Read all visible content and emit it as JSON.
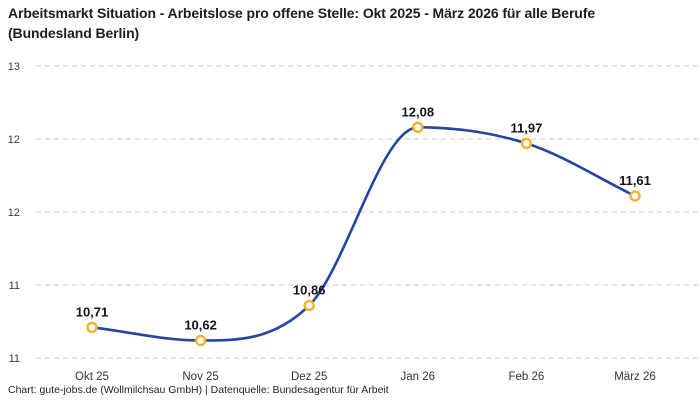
{
  "header": {
    "title": "Arbeitsmarkt Situation - Arbeitslose pro offene Stelle: Okt 2025 - März 2026 für alle Berufe (Bundesland Berlin)"
  },
  "chart_data": {
    "type": "line",
    "title": "Arbeitsmarkt Situation - Arbeitslose pro offene Stelle: Okt 2025 - März 2026 für alle Berufe (Bundesland Berlin)",
    "categories": [
      "Okt 25",
      "Nov 25",
      "Dez 25",
      "Jan 26",
      "Feb 26",
      "März 26"
    ],
    "values": [
      10.71,
      10.62,
      10.86,
      12.08,
      11.97,
      11.61
    ],
    "value_labels": [
      "10,71",
      "10,62",
      "10,86",
      "12,08",
      "11,97",
      "11,61"
    ],
    "series": [
      {
        "name": "Arbeitslose pro offene Stelle",
        "values": [
          10.71,
          10.62,
          10.86,
          12.08,
          11.97,
          11.61
        ]
      }
    ],
    "xlabel": "",
    "ylabel": "",
    "ylim": [
      10.5,
      12.5
    ],
    "y_axis": {
      "gridlines": [
        {
          "value": 12.5,
          "label": "13"
        },
        {
          "value": 12.0,
          "label": "12"
        },
        {
          "value": 11.5,
          "label": "12"
        },
        {
          "value": 11.0,
          "label": "11"
        },
        {
          "value": 10.5,
          "label": "11"
        }
      ],
      "grid_style": "dashed"
    },
    "legend_position": "none",
    "colors": {
      "line": "#2545a0",
      "marker_ring": "#f3b229",
      "marker_fill": "#ffffff",
      "grid": "#cbcbcb",
      "value_label": "#141414",
      "tick_label": "#333333",
      "title": "#1d1d1d"
    }
  },
  "footer": {
    "credit": "Chart: gute-jobs.de (Wollmilchsau GmbH) | Datenquelle: Bundesagentur für Arbeit"
  }
}
